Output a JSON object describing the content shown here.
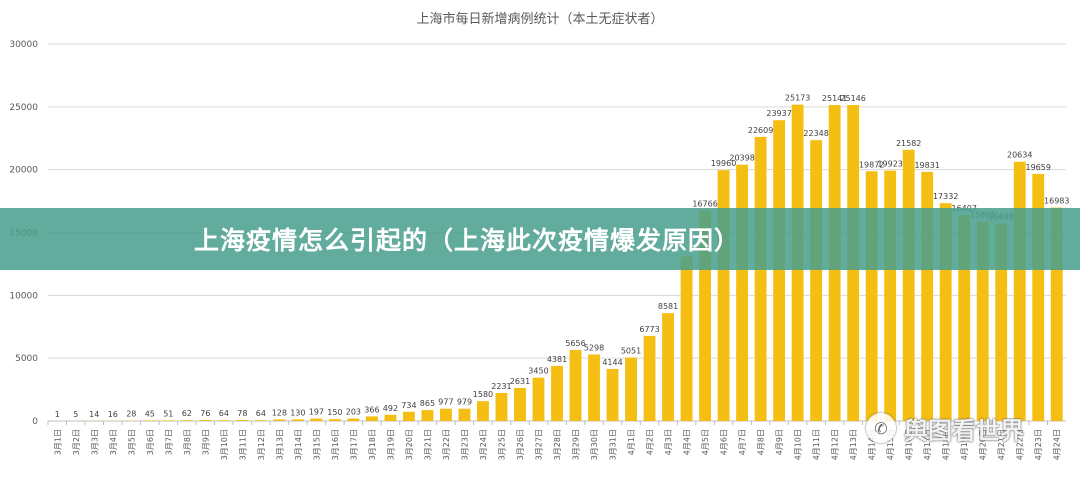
{
  "chart_data": {
    "type": "bar",
    "title": "上海市每日新增病例统计（本土无症状者）",
    "xlabel": "",
    "ylabel": "",
    "ylim": [
      0,
      30000
    ],
    "yticks": [
      0,
      5000,
      10000,
      15000,
      20000,
      25000,
      30000
    ],
    "grid": true,
    "bar_color": "#F5BE12",
    "categories": [
      "3月1日",
      "3月2日",
      "3月3日",
      "3月4日",
      "3月5日",
      "3月6日",
      "3月7日",
      "3月8日",
      "3月9日",
      "3月10日",
      "3月11日",
      "3月12日",
      "3月13日",
      "3月14日",
      "3月15日",
      "3月16日",
      "3月17日",
      "3月18日",
      "3月19日",
      "3月20日",
      "3月21日",
      "3月22日",
      "3月23日",
      "3月24日",
      "3月25日",
      "3月26日",
      "3月27日",
      "3月28日",
      "3月29日",
      "3月30日",
      "3月31日",
      "4月1日",
      "4月2日",
      "4月3日",
      "4月4日",
      "4月5日",
      "4月6日",
      "4月7日",
      "4月8日",
      "4月9日",
      "4月10日",
      "4月11日",
      "4月12日",
      "4月13日",
      "4月14日",
      "4月15日",
      "4月16日",
      "4月17日",
      "4月18日",
      "4月19日",
      "4月20日",
      "4月21日",
      "4月22日",
      "4月23日",
      "4月24日"
    ],
    "values": [
      1,
      5,
      14,
      16,
      28,
      45,
      51,
      62,
      76,
      64,
      78,
      64,
      128,
      130,
      197,
      150,
      203,
      366,
      492,
      734,
      865,
      977,
      979,
      1580,
      2231,
      2631,
      3450,
      4381,
      5656,
      5298,
      4144,
      5051,
      6773,
      8581,
      13086,
      16766,
      19960,
      20398,
      22609,
      23937,
      25173,
      22348,
      25141,
      25146,
      19872,
      19923,
      21582,
      19831,
      17332,
      16407,
      15861,
      15698,
      20634,
      19659,
      16983
    ],
    "data_labels": [
      "1",
      "5",
      "14",
      "16",
      "28",
      "45",
      "51",
      "62",
      "76",
      "64",
      "78",
      "64",
      "128",
      "130",
      "197",
      "150",
      "203",
      "366",
      "492",
      "734",
      "865",
      "977",
      "979",
      "1580",
      "2231",
      "2631",
      "3450",
      "4381",
      "5656",
      "5298",
      "4144",
      "5051",
      "6773",
      "8581",
      "",
      "16766",
      "19960",
      "20398",
      "22609",
      "23937",
      "25173",
      "22348",
      "25141",
      "25146",
      "19872",
      "19923",
      "21582",
      "19831",
      "17332",
      "16407",
      "15861",
      "15698",
      "20634",
      "19659",
      "16983"
    ]
  },
  "banner": {
    "text": "上海疫情怎么引起的（上海此次疫情爆发原因）"
  },
  "watermark": {
    "text": "舆图看世界",
    "icon": "wechat-icon"
  }
}
